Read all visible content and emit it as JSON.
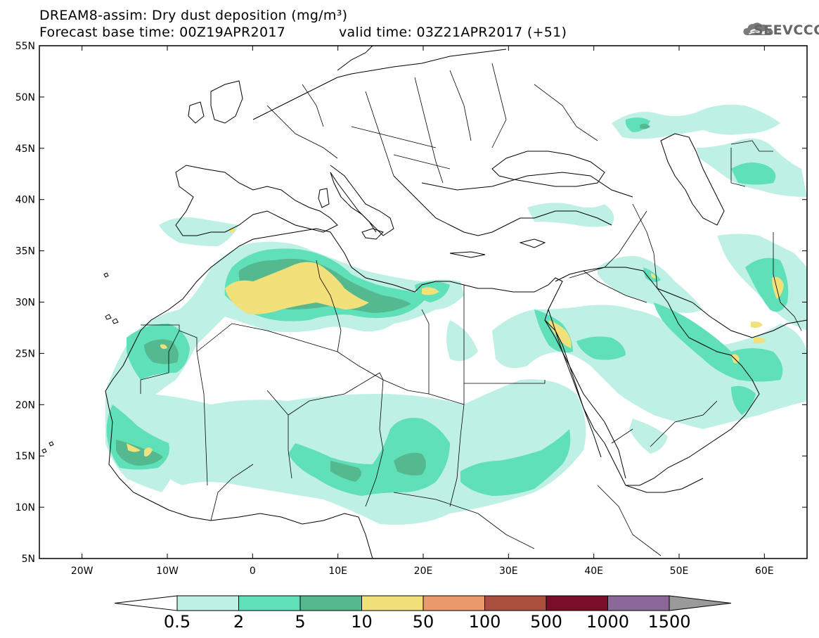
{
  "title": {
    "line1": "DREAM8-assim: Dry dust deposition (mg/m³)",
    "line2": "Forecast base time: 00Z19APR2017",
    "valid": "valid time: 03Z21APR2017 (+51)"
  },
  "logo": {
    "text": "SEEVCCC",
    "icon": "cloud-icon"
  },
  "map": {
    "lon_range": [
      -25,
      65
    ],
    "lat_range": [
      5,
      55
    ],
    "x_ticks": [
      "20W",
      "10W",
      "0",
      "10E",
      "20E",
      "30E",
      "40E",
      "50E",
      "60E"
    ],
    "y_ticks": [
      "55N",
      "50N",
      "45N",
      "40N",
      "35N",
      "30N",
      "25N",
      "20N",
      "15N",
      "10N",
      "5N"
    ]
  },
  "colorbar": {
    "labels": [
      "0.5",
      "2",
      "5",
      "10",
      "50",
      "100",
      "500",
      "1000",
      "1500"
    ],
    "colors": [
      "#bff0e6",
      "#5fe0b8",
      "#55b98f",
      "#f2e07a",
      "#e89a6c",
      "#aa4e3e",
      "#7a0e2a",
      "#8b679a"
    ],
    "under_color": "#ffffff",
    "over_color": "#9a9a9a"
  },
  "levels": {
    "c1": "#bff0e6",
    "c2": "#5fe0b8",
    "c3": "#55b98f",
    "c4": "#f2e07a"
  }
}
